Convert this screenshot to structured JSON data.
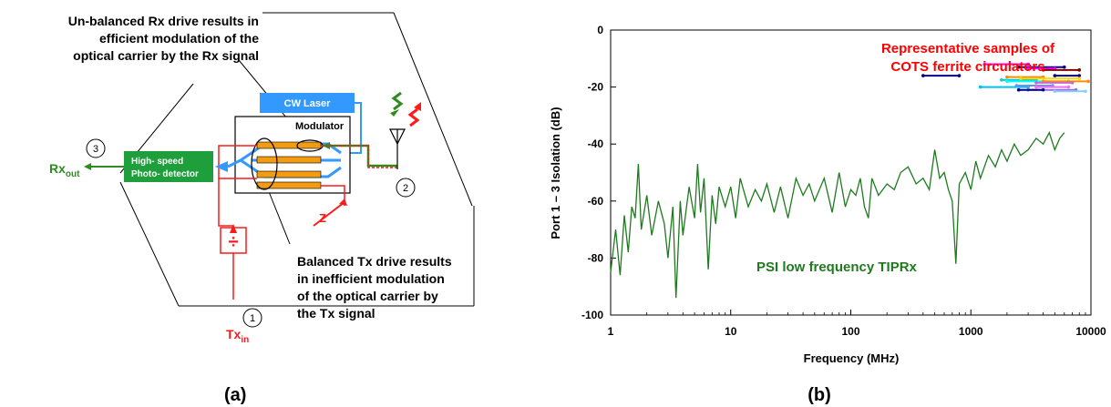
{
  "diagram": {
    "caption": "(a)",
    "callout_top": [
      "Un-balanced Rx drive results in",
      "efficient modulation of the",
      "optical carrier by the Rx signal"
    ],
    "callout_bottom": [
      "Balanced Tx drive results",
      "in inefficient modulation",
      "of the optical carrier by",
      "the Tx signal"
    ],
    "laser_label": "CW Laser",
    "modulator_label": "Modulator",
    "detector_label": [
      "High- speed",
      "Photo- detector"
    ],
    "rx_out": {
      "main": "Rx",
      "sub": "out"
    },
    "tx_in": {
      "main": "Tx",
      "sub": "in"
    },
    "port1": "1",
    "port2": "2",
    "port3": "3",
    "divider_symbol": "÷",
    "z_label": "Z",
    "colors": {
      "green": "#2e8b1f",
      "red": "#ff1a1a",
      "blue": "#3399ff",
      "orange": "#f39c12",
      "detector": "#1e9f3c"
    }
  },
  "chart_data": {
    "type": "line",
    "caption": "(b)",
    "xlabel": "Frequency (MHz)",
    "ylabel": "Port 1 – 3 Isolation (dB)",
    "xscale": "log",
    "xlim": [
      1,
      10000
    ],
    "ylim": [
      -100,
      0
    ],
    "xticks": [
      1,
      10,
      100,
      1000,
      10000
    ],
    "xtick_labels": [
      "1",
      "10",
      "100",
      "1000",
      "10000"
    ],
    "yticks": [
      0,
      -20,
      -40,
      -60,
      -80,
      -100
    ],
    "ytick_labels": [
      "0",
      "-20",
      "-40",
      "-60",
      "-80",
      "-100"
    ],
    "annotation_top": [
      "Representative samples of",
      "COTS ferrite circulators"
    ],
    "annotation_top_color": "#ff0000",
    "series": [
      {
        "name": "PSI low frequency TIPRx",
        "color": "#1f7a1f",
        "x": [
          1,
          1.1,
          1.2,
          1.3,
          1.4,
          1.5,
          1.6,
          1.7,
          1.8,
          2,
          2.2,
          2.5,
          2.8,
          3,
          3.3,
          3.5,
          3.8,
          4,
          4.5,
          5,
          5.3,
          5.6,
          6,
          6.5,
          7,
          7.5,
          8,
          9,
          10,
          11,
          12,
          14,
          16,
          18,
          20,
          23,
          26,
          30,
          35,
          40,
          45,
          50,
          60,
          70,
          80,
          90,
          100,
          110,
          120,
          130,
          140,
          150,
          170,
          200,
          230,
          260,
          300,
          350,
          400,
          450,
          500,
          550,
          600,
          650,
          700,
          750,
          800,
          900,
          1000,
          1100,
          1200,
          1400,
          1600,
          1800,
          2000,
          2300,
          2600,
          3000,
          3500,
          4000,
          4500,
          5000,
          5500,
          6000
        ],
        "y": [
          -85,
          -70,
          -86,
          -65,
          -78,
          -62,
          -66,
          -47,
          -70,
          -58,
          -72,
          -60,
          -68,
          -80,
          -62,
          -94,
          -60,
          -72,
          -55,
          -66,
          -47,
          -64,
          -52,
          -84,
          -58,
          -68,
          -55,
          -62,
          -55,
          -66,
          -52,
          -62,
          -56,
          -60,
          -54,
          -64,
          -55,
          -66,
          -52,
          -58,
          -54,
          -60,
          -52,
          -64,
          -50,
          -62,
          -56,
          -58,
          -52,
          -62,
          -66,
          -52,
          -58,
          -54,
          -56,
          -50,
          -48,
          -54,
          -52,
          -56,
          -42,
          -52,
          -50,
          -56,
          -60,
          -82,
          -54,
          -50,
          -56,
          -46,
          -52,
          -44,
          -48,
          -42,
          -46,
          -40,
          -44,
          -42,
          -38,
          -40,
          -36,
          -42,
          -38,
          -36
        ]
      }
    ],
    "cots_samples": [
      {
        "color": "#00008b",
        "x": [
          400,
          800
        ],
        "y": -16
      },
      {
        "color": "#ff00ff",
        "x": [
          1300,
          3000
        ],
        "y": -12
      },
      {
        "color": "#000080",
        "x": [
          2500,
          6000
        ],
        "y": -13
      },
      {
        "color": "#ff00ff",
        "x": [
          3000,
          5000
        ],
        "y": -13.5
      },
      {
        "color": "#800000",
        "x": [
          4000,
          8000
        ],
        "y": -14
      },
      {
        "color": "#ff8c00",
        "x": [
          2000,
          4000
        ],
        "y": -16.5
      },
      {
        "color": "#000080",
        "x": [
          5000,
          8000
        ],
        "y": -16
      },
      {
        "color": "#00cccc",
        "x": [
          1800,
          3500
        ],
        "y": -17.5
      },
      {
        "color": "#ffd700",
        "x": [
          2600,
          8000
        ],
        "y": -17
      },
      {
        "color": "#00ffff",
        "x": [
          2000,
          6500
        ],
        "y": -18
      },
      {
        "color": "#ff8c00",
        "x": [
          4000,
          9500
        ],
        "y": -18
      },
      {
        "color": "#cc66cc",
        "x": [
          3500,
          7000
        ],
        "y": -18.5
      },
      {
        "color": "#00bfff",
        "x": [
          1200,
          3000
        ],
        "y": -20
      },
      {
        "color": "#6495ed",
        "x": [
          2400,
          4800
        ],
        "y": -19.5
      },
      {
        "color": "#ff66ff",
        "x": [
          3500,
          6500
        ],
        "y": -20
      },
      {
        "color": "#9370db",
        "x": [
          3000,
          7500
        ],
        "y": -21
      },
      {
        "color": "#87cefa",
        "x": [
          5000,
          9000
        ],
        "y": -21.5
      },
      {
        "color": "#000080",
        "x": [
          2500,
          4000
        ],
        "y": -21
      }
    ]
  }
}
